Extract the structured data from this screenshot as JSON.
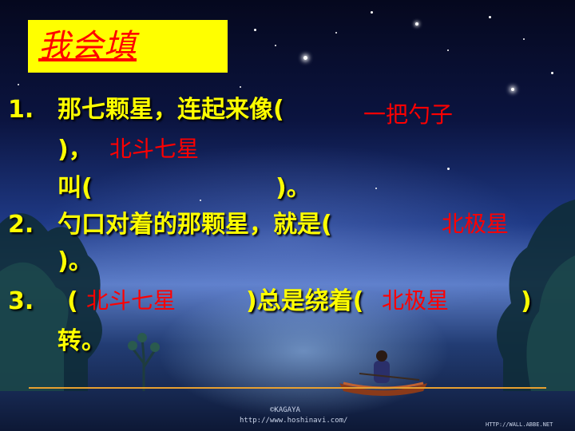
{
  "slide": {
    "title": "我会填",
    "items": [
      {
        "number": "1.",
        "line1": "那七颗星，连起来像(",
        "answer1": "一把勺子",
        "line2": ")，",
        "answer2": "北斗七星",
        "line3_open": "叫(",
        "line3_close": ")。"
      },
      {
        "number": "2.",
        "line1": "勺口对着的那颗星，就是(",
        "answer1": "北极星",
        "line2": ")。"
      },
      {
        "number": "3.",
        "open": "(",
        "answer1": "北斗七星",
        "middle": ")总是绕着(",
        "answer2": "北极星",
        "close": ")",
        "line2": "转。"
      }
    ],
    "watermark": {
      "brand": "©KAGAYA",
      "url": "http://www.hoshinavi.com/",
      "corner": "HTTP://WALL.ABBE.NET"
    }
  }
}
